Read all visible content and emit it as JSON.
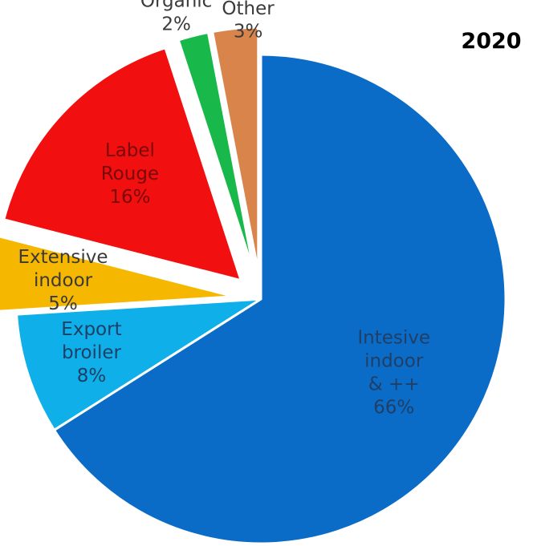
{
  "chart_data": {
    "type": "pie",
    "title": "2020",
    "slices": [
      {
        "label": [
          "Intesive",
          "indoor",
          "& ++",
          "66%"
        ],
        "value": 66,
        "color": "#0B6CC8"
      },
      {
        "label": [
          "Export",
          "broiler",
          "8%"
        ],
        "value": 8,
        "color": "#0FB0EA"
      },
      {
        "label": [
          "Extensive",
          "indoor",
          "5%"
        ],
        "value": 5,
        "color": "#F5B700"
      },
      {
        "label": [
          "Label",
          "Rouge",
          "16%"
        ],
        "value": 16,
        "color": "#F20F0F"
      },
      {
        "label": [
          "Organic",
          "2%"
        ],
        "value": 2,
        "color": "#19B84B"
      },
      {
        "label": [
          "Other",
          "3%"
        ],
        "value": 3,
        "color": "#D9844A"
      }
    ],
    "label_colors": [
      "#1F3F66",
      "#1F3F66",
      "#3A3A3A",
      "#7A0A0A",
      "#3A3A3A",
      "#3A3A3A"
    ],
    "exploded": [
      false,
      false,
      true,
      true,
      true,
      true
    ],
    "legend": "none"
  }
}
